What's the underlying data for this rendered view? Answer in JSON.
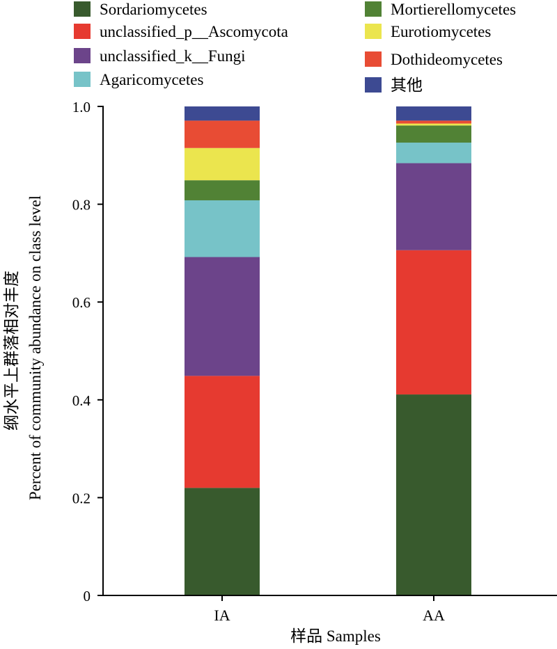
{
  "chart_data": {
    "type": "bar",
    "stacked": true,
    "categories": [
      "IA",
      "AA"
    ],
    "series": [
      {
        "name": "Sordariomycetes",
        "color": "#385a2d",
        "values": [
          0.22,
          0.411
        ]
      },
      {
        "name": "unclassified_p__Ascomycota",
        "color": "#e63a30",
        "values": [
          0.229,
          0.295
        ]
      },
      {
        "name": "unclassified_k__Fungi",
        "color": "#6c448a",
        "values": [
          0.243,
          0.178
        ]
      },
      {
        "name": "Agaricomycetes",
        "color": "#77c3c8",
        "values": [
          0.116,
          0.042
        ]
      },
      {
        "name": "Mortierellomycetes",
        "color": "#518235",
        "values": [
          0.041,
          0.035
        ]
      },
      {
        "name": "Eurotiomycetes",
        "color": "#ebe54e",
        "values": [
          0.066,
          0.004
        ]
      },
      {
        "name": "Dothideomycetes",
        "color": "#e84c34",
        "values": [
          0.056,
          0.006
        ]
      },
      {
        "name": "其他",
        "color": "#3d4a92",
        "values": [
          0.029,
          0.029
        ]
      }
    ],
    "y_ticks": [
      "0",
      "0.2",
      "0.4",
      "0.6",
      "0.8",
      "1.0"
    ],
    "ylim": [
      0,
      1.0
    ],
    "ylabel_cn": "纲水平上群落相对丰度",
    "ylabel_en": "Percent of community abundance on class level",
    "xlabel": "样品 Samples",
    "legend_position": "top"
  }
}
